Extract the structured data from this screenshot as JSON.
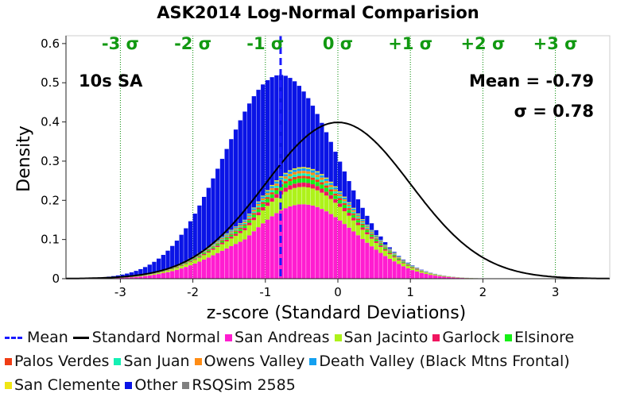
{
  "chart_data": {
    "type": "bar",
    "title": "ASK2014 Log-Normal Comparision",
    "xlabel": "z-score (Standard Deviations)",
    "ylabel": "Density",
    "xlim": [
      -3.75,
      3.75
    ],
    "ylim": [
      0,
      0.62
    ],
    "x_ticks": [
      "-3",
      "-2",
      "-1",
      "0",
      "1",
      "2",
      "3"
    ],
    "y_ticks": [
      "0",
      "0.1",
      "0.2",
      "0.3",
      "0.4",
      "0.5",
      "0.6"
    ],
    "sigma_labels": [
      "-3 σ",
      "-2 σ",
      "-1 σ",
      "0 σ",
      "+1 σ",
      "+2 σ",
      "+3 σ"
    ],
    "sigma_positions": [
      -3,
      -2,
      -1,
      0,
      1,
      2,
      3
    ],
    "annotations": {
      "period": "10s SA",
      "mean": "Mean = -0.79",
      "sigma": "σ = 0.78"
    },
    "mean_line_x": -0.79,
    "bin_width": 0.0625,
    "histogram": {
      "start": -3.5,
      "end": 2.0,
      "mean": -0.79,
      "sigma": 0.78,
      "peak_density": 0.52
    },
    "series": [
      {
        "name": "San Andreas",
        "color": "#ff1dd0"
      },
      {
        "name": "San Jacinto",
        "color": "#aef21a"
      },
      {
        "name": "Garlock",
        "color": "#f0155f"
      },
      {
        "name": "Elsinore",
        "color": "#16f016"
      },
      {
        "name": "Palos Verdes",
        "color": "#f03c14"
      },
      {
        "name": "San Juan",
        "color": "#14f0b4"
      },
      {
        "name": "Owens Valley",
        "color": "#ff8c14"
      },
      {
        "name": "Death Valley (Black Mtns Frontal)",
        "color": "#14a0f0"
      },
      {
        "name": "San Clemente",
        "color": "#f0e614"
      },
      {
        "name": "Other",
        "color": "#0a14e6"
      },
      {
        "name": "RSQSim 2585",
        "color": "#808080"
      }
    ],
    "legend": {
      "mean": "Mean",
      "standard_normal": "Standard Normal"
    },
    "colors": {
      "grid": "#008800",
      "sigma_text": "#119911",
      "mean_line": "#1a1aff",
      "normal_curve": "#000000"
    },
    "legend_placement": "bottom"
  }
}
